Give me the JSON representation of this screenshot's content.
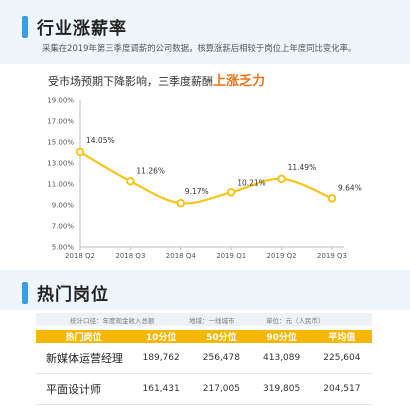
{
  "section1": {
    "title": "行业涨薪率"
  },
  "subtitle": "采集在2019年第三季度调薪的公司数据，核算涨薪后相较于岗位上年度同比变化率。",
  "headline": {
    "prefix": "受市场预期下降影响，三季度薪酬",
    "highlight": "上涨乏力"
  },
  "colors": {
    "accent_blue": "#3aa0e6",
    "line": "#f5c518",
    "highlight": "#e8731a",
    "table_header": "#f5b700"
  },
  "chart_data": {
    "type": "line",
    "categories": [
      "2018 Q2",
      "2018 Q3",
      "2018 Q4",
      "2019 Q1",
      "2019 Q2",
      "2019 Q3"
    ],
    "values": [
      14.05,
      11.26,
      9.17,
      10.21,
      11.49,
      9.64
    ],
    "data_labels": [
      "14.05%",
      "11.26%",
      "9.17%",
      "10.21%",
      "11.49%",
      "9.64%"
    ],
    "y_ticks": [
      "5.00%",
      "7.00%",
      "9.00%",
      "11.00%",
      "13.00%",
      "15.00%",
      "17.00%",
      "19.00%"
    ],
    "ylim": [
      5,
      19
    ],
    "title": "",
    "xlabel": "",
    "ylabel": "",
    "grid": false
  },
  "section2": {
    "title": "热门岗位"
  },
  "meta": {
    "scope": "统计口径：年度现金收入总额",
    "region": "地域：一线城市",
    "unit": "单位：元（人民币）"
  },
  "table": {
    "headers": [
      "热门岗位",
      "10分位",
      "50分位",
      "90分位",
      "平均值"
    ],
    "rows": [
      [
        "新媒体运营经理",
        "189,762",
        "256,478",
        "413,089",
        "225,604"
      ],
      [
        "平面设计师",
        "161,431",
        "217,005",
        "319,805",
        "204,517"
      ]
    ]
  }
}
